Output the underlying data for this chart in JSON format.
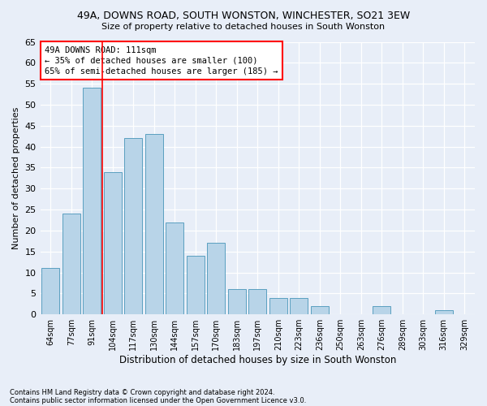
{
  "title1": "49A, DOWNS ROAD, SOUTH WONSTON, WINCHESTER, SO21 3EW",
  "title2": "Size of property relative to detached houses in South Wonston",
  "xlabel": "Distribution of detached houses by size in South Wonston",
  "ylabel": "Number of detached properties",
  "categories": [
    "64sqm",
    "77sqm",
    "91sqm",
    "104sqm",
    "117sqm",
    "130sqm",
    "144sqm",
    "157sqm",
    "170sqm",
    "183sqm",
    "197sqm",
    "210sqm",
    "223sqm",
    "236sqm",
    "250sqm",
    "263sqm",
    "276sqm",
    "289sqm",
    "303sqm",
    "316sqm",
    "329sqm"
  ],
  "values": [
    11,
    24,
    54,
    34,
    42,
    43,
    22,
    14,
    17,
    6,
    6,
    4,
    4,
    2,
    0,
    0,
    2,
    0,
    0,
    1,
    0
  ],
  "bar_color": "#b8d4e8",
  "bar_edge_color": "#5a9fc0",
  "bg_color": "#e8eef8",
  "red_line_x": 2.5,
  "annotation_text": "49A DOWNS ROAD: 111sqm\n← 35% of detached houses are smaller (100)\n65% of semi-detached houses are larger (185) →",
  "annotation_box_color": "white",
  "annotation_box_edge": "red",
  "footer1": "Contains HM Land Registry data © Crown copyright and database right 2024.",
  "footer2": "Contains public sector information licensed under the Open Government Licence v3.0.",
  "ylim": [
    0,
    65
  ],
  "yticks": [
    0,
    5,
    10,
    15,
    20,
    25,
    30,
    35,
    40,
    45,
    50,
    55,
    60,
    65
  ]
}
